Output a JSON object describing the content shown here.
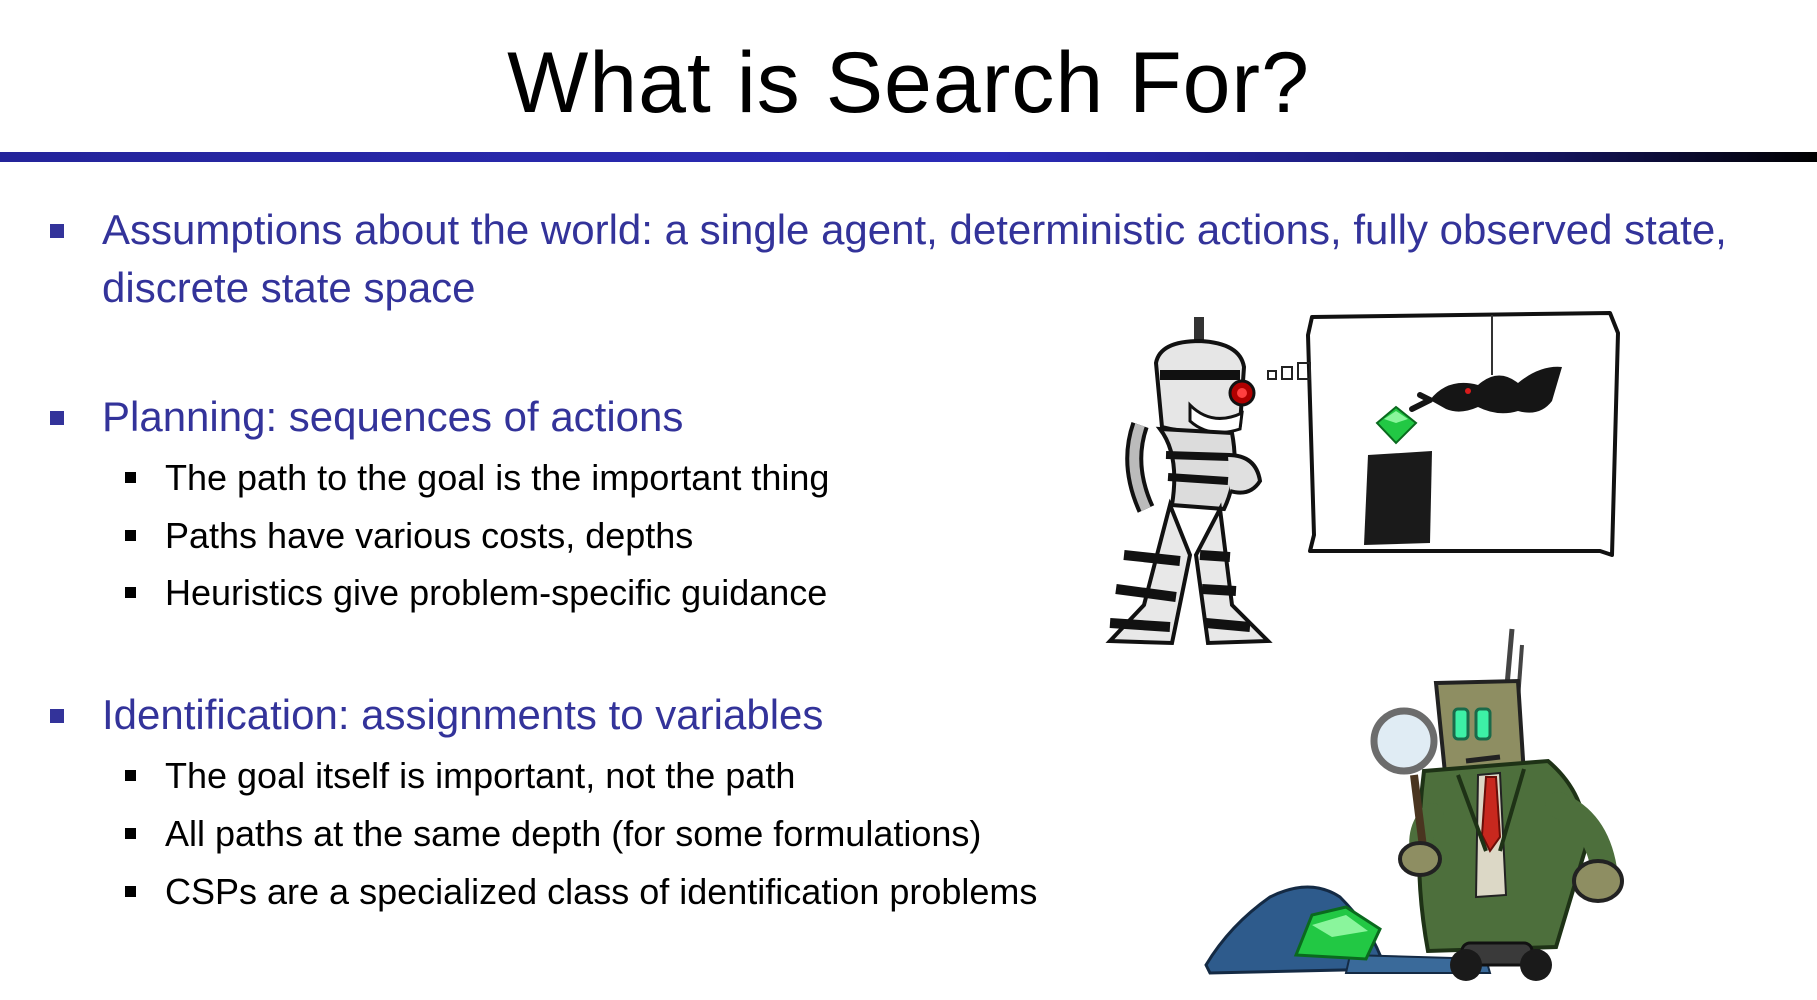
{
  "slide": {
    "title": "What is Search For?",
    "colors": {
      "heading_blue": "#33339a",
      "rule_blue": "#2b2bb8",
      "text_black": "#000000",
      "gem_green": "#22c844"
    },
    "bullets": [
      {
        "text": "Assumptions about the world: a single agent, deterministic actions, fully observed state, discrete state space",
        "subitems": []
      },
      {
        "text": "Planning: sequences of actions",
        "subitems": [
          "The path to the goal is the important thing",
          "Paths have various costs, depths",
          "Heuristics give problem-specific guidance"
        ]
      },
      {
        "text": "Identification: assignments to variables",
        "subitems": [
          "The goal itself is important, not the path",
          "All paths at the same depth (for some formulations)",
          "CSPs are a specialized class of identification problems"
        ]
      }
    ],
    "illustrations": {
      "top": "robot-thinking-about-thief-stealing-gem",
      "bottom": "detective-robot-with-magnifying-glass-finding-gem"
    }
  }
}
